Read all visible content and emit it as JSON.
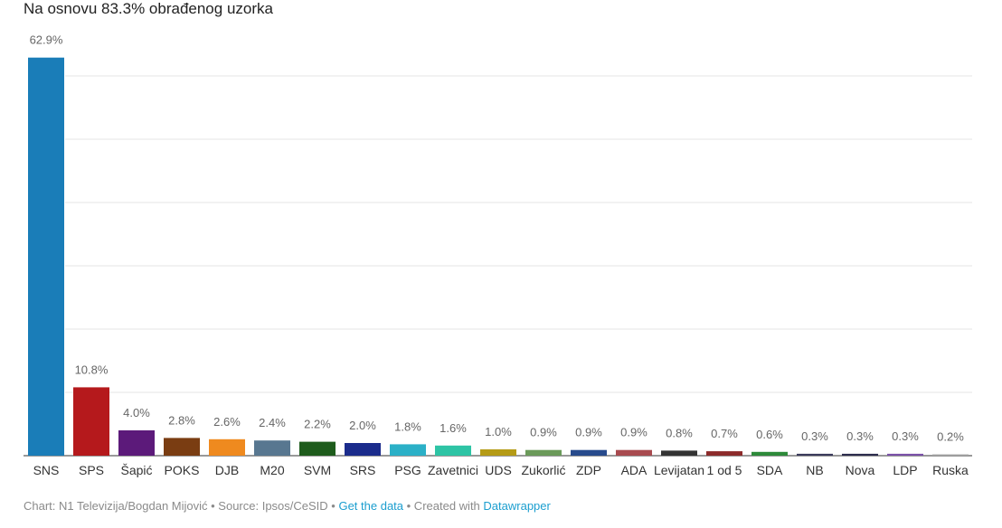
{
  "header": {
    "subtitle": "Na osnovu 83.3% obrađenog uzorka"
  },
  "chart_data": {
    "type": "bar",
    "categories": [
      "SNS",
      "SPS",
      "Šapić",
      "POKS",
      "DJB",
      "M20",
      "SVM",
      "SRS",
      "PSG",
      "Zavetnici",
      "UDS",
      "Zukorlić",
      "ZDP",
      "ADA",
      "Levijatan",
      "1 od 5",
      "SDA",
      "NB",
      "Nova",
      "LDP",
      "Ruska"
    ],
    "values": [
      62.9,
      10.8,
      4.0,
      2.8,
      2.6,
      2.4,
      2.2,
      2.0,
      1.8,
      1.6,
      1.0,
      0.9,
      0.9,
      0.9,
      0.8,
      0.7,
      0.6,
      0.3,
      0.3,
      0.3,
      0.2
    ],
    "value_labels": [
      "62.9%",
      "10.8%",
      "4.0%",
      "2.8%",
      "2.6%",
      "2.4%",
      "2.2%",
      "2.0%",
      "1.8%",
      "1.6%",
      "1.0%",
      "0.9%",
      "0.9%",
      "0.9%",
      "0.8%",
      "0.7%",
      "0.6%",
      "0.3%",
      "0.3%",
      "0.3%",
      "0.2%"
    ],
    "colors": [
      "#1a7db8",
      "#b5191c",
      "#5c1a7a",
      "#7a3d12",
      "#ef8a1f",
      "#587790",
      "#1e5c1c",
      "#1b2c8c",
      "#2bb0c7",
      "#2ec4a5",
      "#b59b16",
      "#6b9a5a",
      "#274a8c",
      "#a84a4f",
      "#333333",
      "#8c2a2a",
      "#2d8a3a",
      "#3a3a5a",
      "#2c2c4c",
      "#7a50a8",
      "#a0a0a0"
    ],
    "ylim": [
      0,
      63
    ],
    "gridlines": [
      0,
      10,
      20,
      30,
      40,
      50,
      60
    ],
    "grid": true,
    "title": "",
    "xlabel": "",
    "ylabel": ""
  },
  "footer": {
    "prefix": "Chart: N1 Televizija/Bogdan Mijović • Source: Ipsos/CeSID • ",
    "get_data": "Get the data",
    "middle": " • Created with ",
    "datawrapper": "Datawrapper"
  }
}
